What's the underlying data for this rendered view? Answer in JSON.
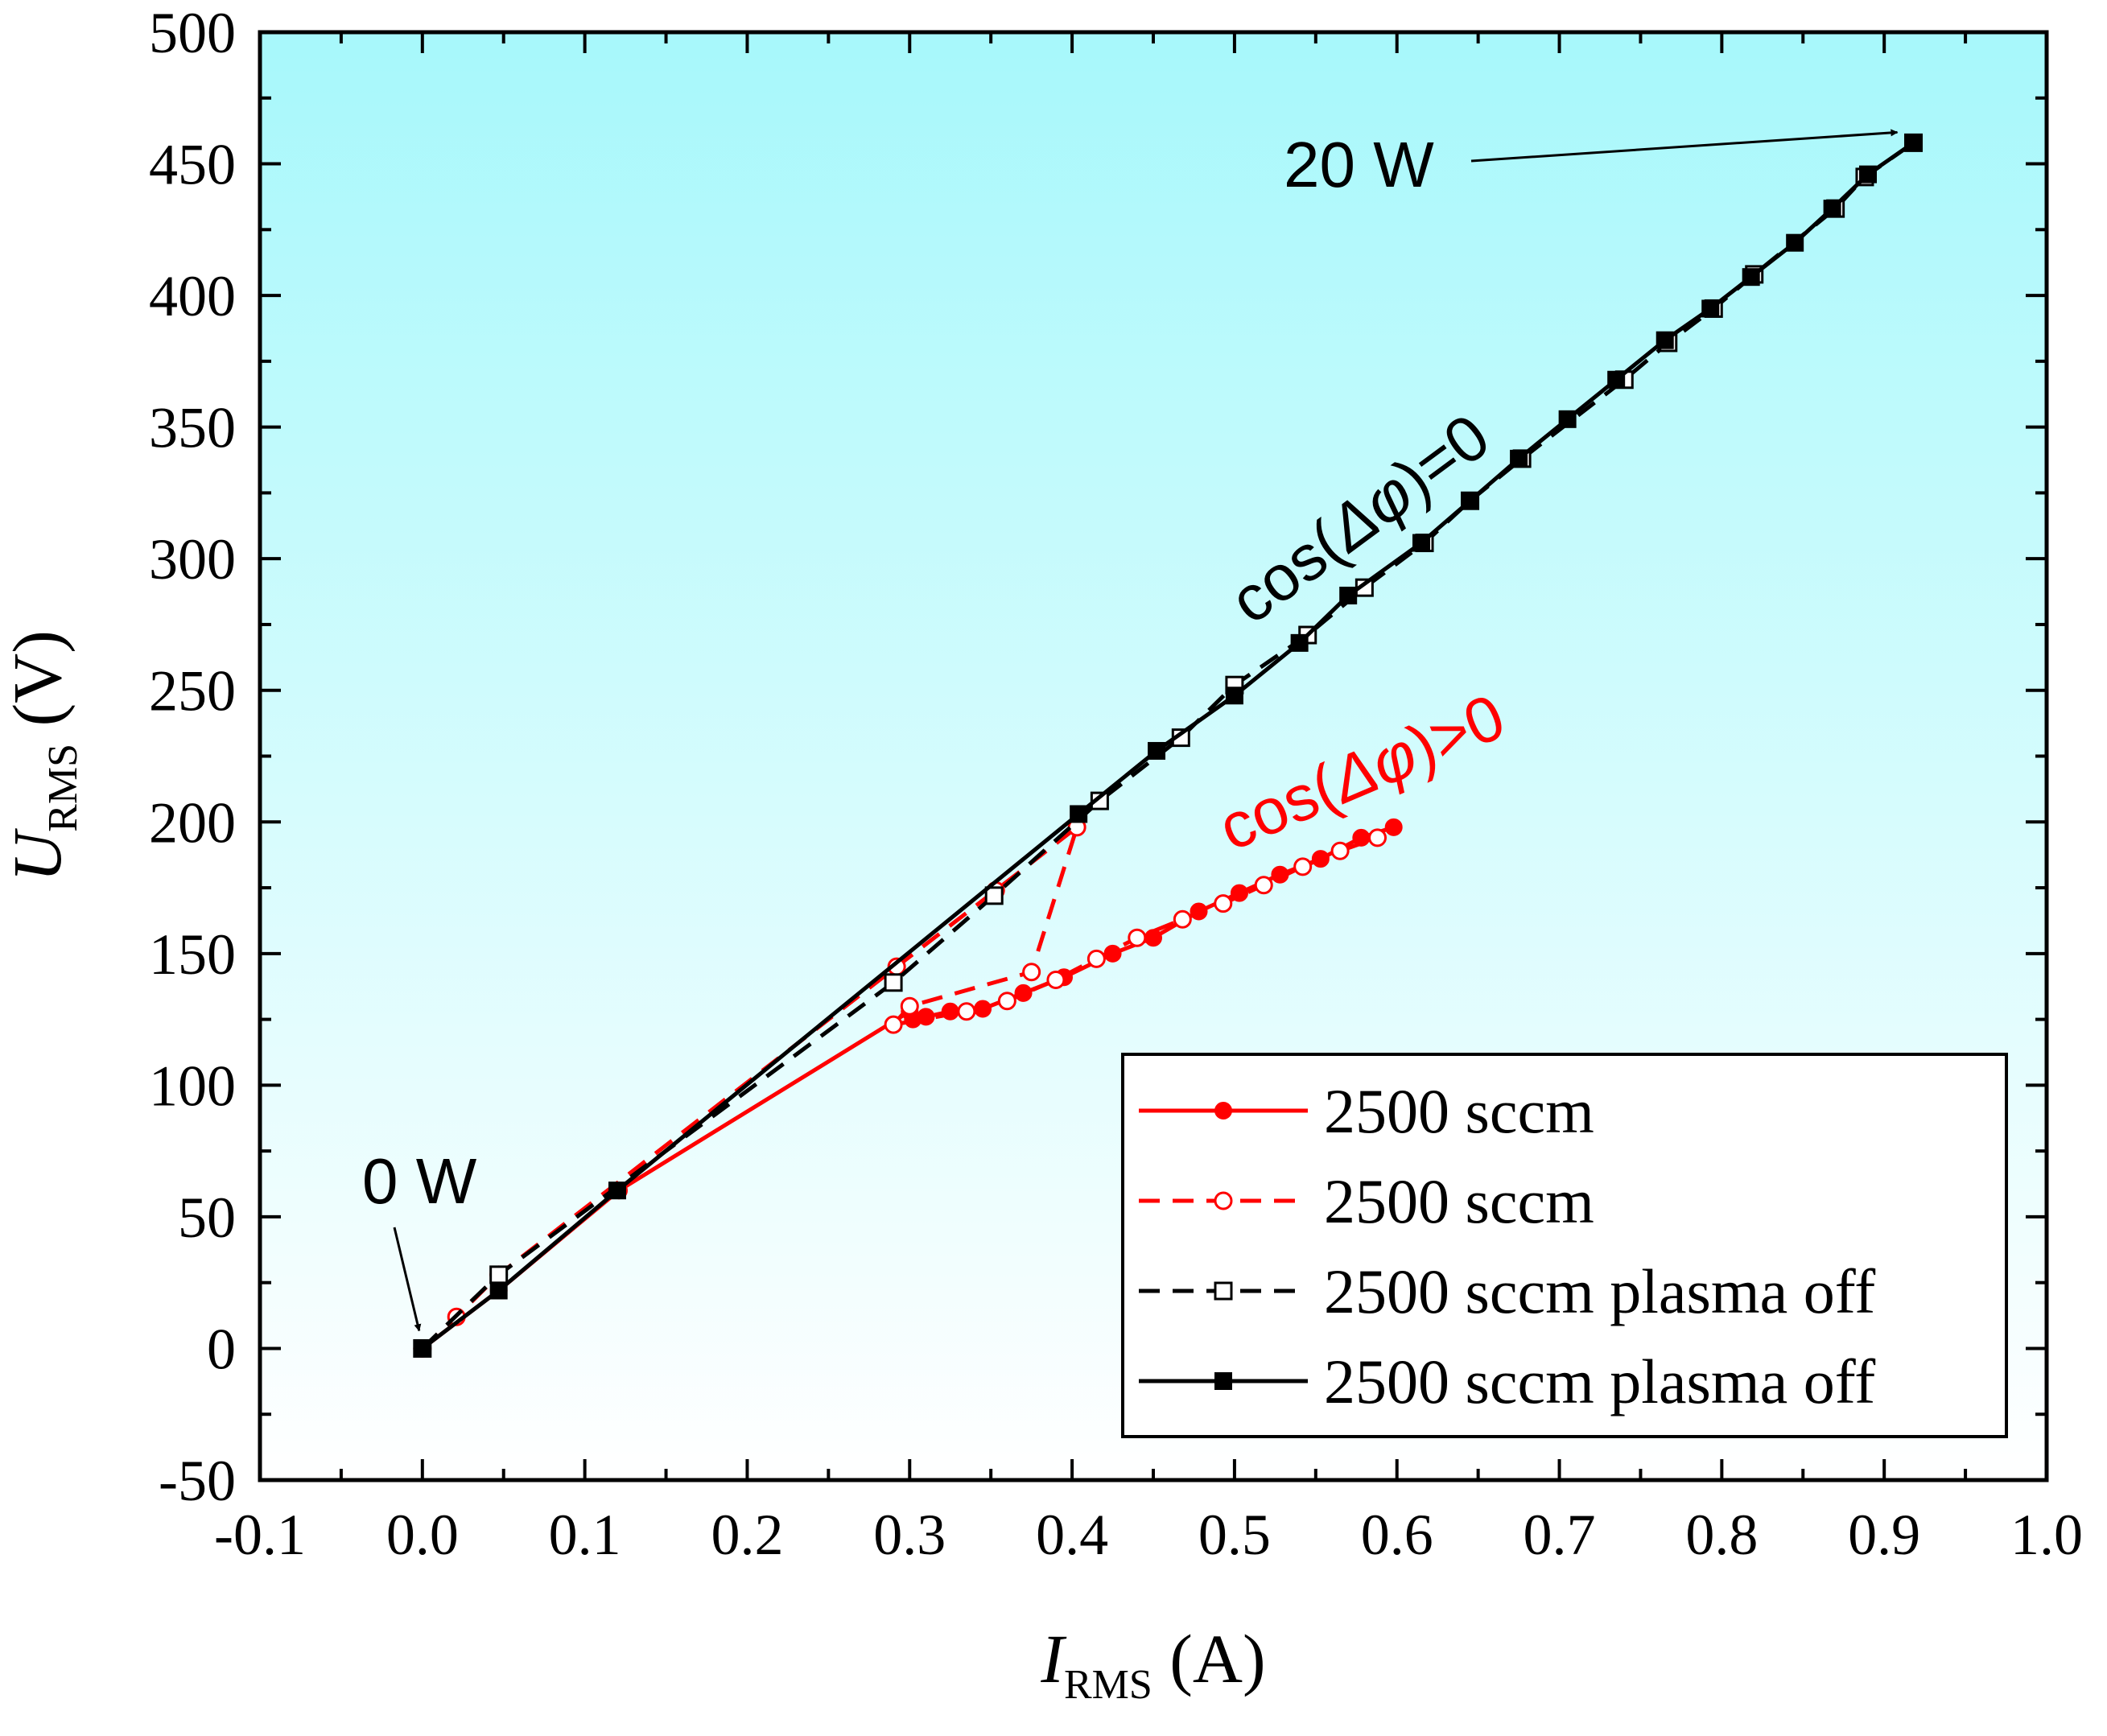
{
  "chart_data": {
    "type": "line",
    "title": "",
    "xlabel": {
      "symbol": "I",
      "subscript": "RMS",
      "unit": " (A)"
    },
    "ylabel": {
      "symbol": "U",
      "subscript": "RMS",
      "unit": " (V)"
    },
    "xlim": [
      -0.1,
      1.0
    ],
    "ylim": [
      -50,
      500
    ],
    "xticks": [
      "-0.1",
      "0.0",
      "0.1",
      "0.2",
      "0.3",
      "0.4",
      "0.5",
      "0.6",
      "0.7",
      "0.8",
      "0.9",
      "1.0"
    ],
    "xtick_values": [
      -0.1,
      0.0,
      0.1,
      0.2,
      0.3,
      0.4,
      0.5,
      0.6,
      0.7,
      0.8,
      0.9,
      1.0
    ],
    "yticks": [
      "-50",
      "0",
      "50",
      "100",
      "150",
      "200",
      "250",
      "300",
      "350",
      "400",
      "450",
      "500"
    ],
    "ytick_values": [
      -50,
      0,
      50,
      100,
      150,
      200,
      250,
      300,
      350,
      400,
      450,
      500
    ],
    "grid": false,
    "background": {
      "top": "#a7f8fb",
      "bottom": "#ffffff"
    },
    "legend_position": "bottom-right",
    "series": [
      {
        "name": "2500 sccm",
        "color": "#ff0000",
        "line": "solid",
        "marker": "filled-circle",
        "x": [
          0.0,
          0.047,
          0.121,
          0.3,
          0.302,
          0.31,
          0.325,
          0.345,
          0.37,
          0.395,
          0.425,
          0.45,
          0.478,
          0.503,
          0.528,
          0.553,
          0.578,
          0.598
        ],
        "y": [
          0,
          22,
          60,
          128,
          125,
          126,
          128,
          129,
          135,
          141,
          150,
          156,
          166,
          173,
          180,
          186,
          194,
          198
        ]
      },
      {
        "name": "2500 sccm",
        "color": "#ff0000",
        "line": "dashed",
        "marker": "open-circle",
        "x": [
          0.0,
          0.021,
          0.047,
          0.292,
          0.353,
          0.403,
          0.375,
          0.3,
          0.29,
          0.335,
          0.36,
          0.39,
          0.415,
          0.44,
          0.468,
          0.493,
          0.518,
          0.542,
          0.565,
          0.588
        ],
        "y": [
          0,
          12,
          28,
          145,
          174,
          198,
          143,
          130,
          123,
          128,
          132,
          140,
          148,
          156,
          163,
          169,
          176,
          183,
          189,
          194
        ]
      },
      {
        "name": "2500 sccm plasma off",
        "color": "#000000",
        "line": "dashed",
        "marker": "open-square",
        "x": [
          0.0,
          0.047,
          0.29,
          0.352,
          0.417,
          0.467,
          0.5,
          0.545,
          0.58,
          0.617,
          0.645,
          0.677,
          0.74,
          0.767,
          0.795,
          0.82,
          0.87,
          0.888,
          0.918
        ],
        "y": [
          0,
          28,
          139,
          172,
          208,
          232,
          252,
          271,
          289,
          306,
          322,
          338,
          368,
          382,
          395,
          408,
          433,
          445,
          458
        ]
      },
      {
        "name": "2500 sccm plasma off",
        "color": "#000000",
        "line": "solid",
        "marker": "filled-square",
        "x": [
          0.0,
          0.047,
          0.12,
          0.404,
          0.452,
          0.5,
          0.54,
          0.57,
          0.615,
          0.645,
          0.675,
          0.705,
          0.735,
          0.765,
          0.793,
          0.818,
          0.845,
          0.868,
          0.89,
          0.918
        ],
        "y": [
          0,
          22,
          60,
          203,
          227,
          248,
          268,
          286,
          306,
          322,
          338,
          353,
          368,
          383,
          395,
          407,
          420,
          433,
          446,
          458
        ]
      }
    ],
    "annotations": {
      "zero_w": {
        "text": "0 W",
        "color": "#000000",
        "x": 0.0,
        "y": 0
      },
      "twenty_w": {
        "text": "20 W",
        "color": "#000000",
        "x": 0.918,
        "y": 458
      },
      "cos_zero": {
        "prefix": "cos(",
        "symbol": "Δφ",
        "suffix": ")=0",
        "color": "#000000"
      },
      "cos_positive": {
        "prefix": "cos(",
        "symbol": "Δφ",
        "suffix": ")>0",
        "color": "#ff0000"
      }
    }
  }
}
